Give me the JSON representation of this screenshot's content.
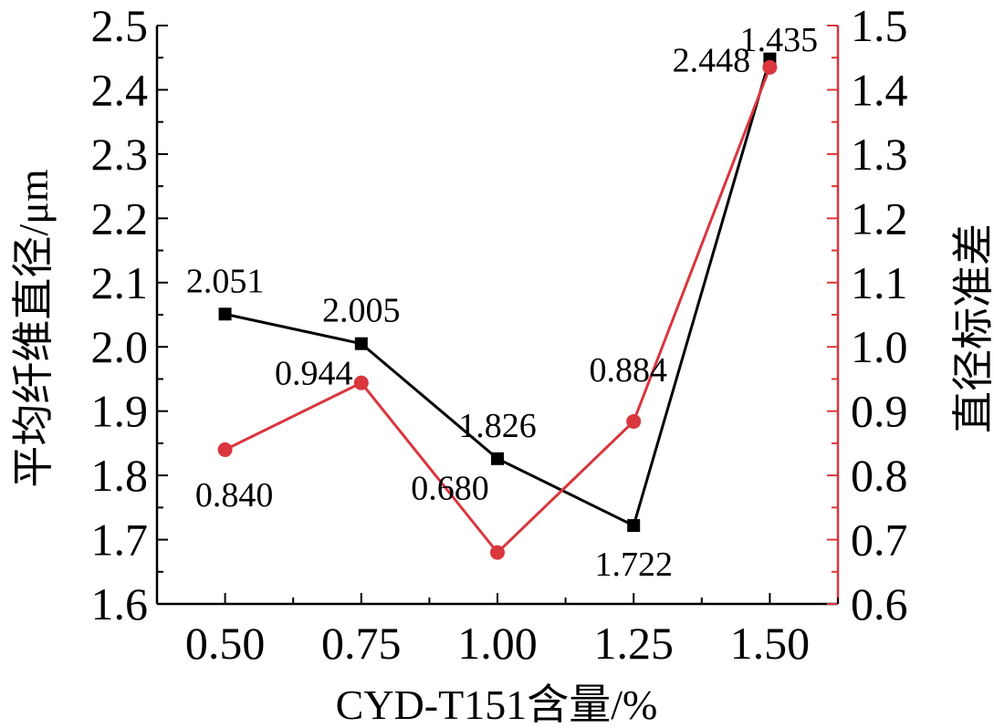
{
  "chart_data": {
    "type": "line",
    "xlabel": "CYD-T151含量/%",
    "ylabel": "平均纤维直径/μm",
    "y2label": "直径标准差",
    "x": [
      0.5,
      0.75,
      1.0,
      1.25,
      1.5
    ],
    "x_tick_labels": [
      "0.50",
      "0.75",
      "1.00",
      "1.25",
      "1.50"
    ],
    "xlim": [
      0.375,
      1.625
    ],
    "ylim": [
      1.6,
      2.5
    ],
    "y_ticks": [
      1.6,
      1.7,
      1.8,
      1.9,
      2.0,
      2.1,
      2.2,
      2.3,
      2.4,
      2.5
    ],
    "y_tick_labels": [
      "1.6",
      "1.7",
      "1.8",
      "1.9",
      "2.0",
      "2.1",
      "2.2",
      "2.3",
      "2.4",
      "2.5"
    ],
    "y2lim": [
      0.6,
      1.5
    ],
    "y2_ticks": [
      0.6,
      0.7,
      0.8,
      0.9,
      1.0,
      1.1,
      1.2,
      1.3,
      1.4,
      1.5
    ],
    "y2_tick_labels": [
      "0.6",
      "0.7",
      "0.8",
      "0.9",
      "1.0",
      "1.1",
      "1.2",
      "1.3",
      "1.4",
      "1.5"
    ],
    "grid": false,
    "series": [
      {
        "axis": "left",
        "marker": "square",
        "color": "#000000",
        "values": [
          2.051,
          2.005,
          1.826,
          1.722,
          2.448
        ],
        "labels": [
          "2.051",
          "2.005",
          "1.826",
          "1.722",
          "2.448"
        ]
      },
      {
        "axis": "right",
        "marker": "circle",
        "color": "#d9363e",
        "values": [
          0.84,
          0.944,
          0.68,
          0.884,
          1.435
        ],
        "labels": [
          "0.840",
          "0.944",
          "0.680",
          "0.884",
          "1.435"
        ]
      }
    ]
  }
}
